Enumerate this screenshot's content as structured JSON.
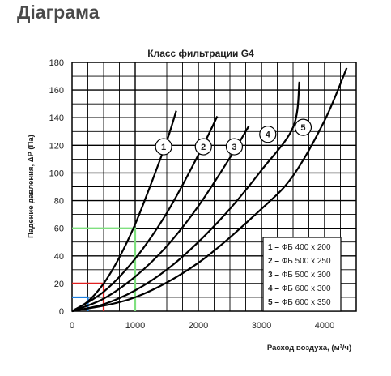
{
  "page": {
    "title": "Діаграма"
  },
  "chart_data": {
    "type": "line",
    "title": "Класс фильтрации G4",
    "xlabel": "Расход воздуха, (м³/ч)",
    "ylabel": "Падение давления, ΔP (Па)",
    "xlim": [
      0,
      4500
    ],
    "ylim": [
      0,
      180
    ],
    "x_ticks": [
      0,
      1000,
      2000,
      3000,
      4000
    ],
    "y_ticks": [
      0,
      20,
      40,
      60,
      80,
      100,
      120,
      140,
      160,
      180
    ],
    "grid": true,
    "grid_x_step": 250,
    "grid_y_step": 10,
    "legend_position": "bottom-right",
    "legend": [
      {
        "marker": "1",
        "sep": "–",
        "label": "ФБ 400 x 200"
      },
      {
        "marker": "2",
        "sep": "–",
        "label": "ФБ 500 x 250"
      },
      {
        "marker": "3",
        "sep": "–",
        "label": "ФБ 500 x 300"
      },
      {
        "marker": "4",
        "sep": "–",
        "label": "ФБ 600 x 300"
      },
      {
        "marker": "5",
        "sep": "–",
        "label": "ФБ 600 x 350"
      }
    ],
    "series": [
      {
        "marker": "1",
        "x": [
          0,
          250,
          500,
          750,
          1000,
          1250,
          1500,
          1650
        ],
        "y": [
          0,
          7,
          20,
          39,
          63,
          92,
          123,
          145
        ],
        "label_at": [
          1450,
          119
        ]
      },
      {
        "marker": "2",
        "x": [
          0,
          500,
          1000,
          1500,
          2000,
          2300
        ],
        "y": [
          0,
          14,
          38,
          71,
          113,
          141
        ],
        "label_at": [
          2080,
          119
        ]
      },
      {
        "marker": "3",
        "x": [
          0,
          500,
          1000,
          1500,
          2000,
          2500,
          2800
        ],
        "y": [
          0,
          9,
          25,
          47,
          76,
          111,
          134
        ],
        "label_at": [
          2570,
          119
        ]
      },
      {
        "marker": "4",
        "x": [
          0,
          500,
          1000,
          1500,
          2000,
          2500,
          3000,
          3500,
          3600
        ],
        "y": [
          0,
          5,
          15,
          30,
          50,
          74,
          102,
          133,
          166
        ],
        "label_at": [
          3100,
          128
        ]
      },
      {
        "marker": "5",
        "x": [
          0,
          1000,
          2000,
          3000,
          3500,
          4000,
          4350
        ],
        "y": [
          0,
          10,
          35,
          74,
          98,
          138,
          176
        ],
        "label_at": [
          3660,
          133
        ]
      }
    ],
    "guides": [
      {
        "color": "#7fe07f",
        "y": 60,
        "x": 1000
      },
      {
        "color": "#e02020",
        "y": 20,
        "x": 500
      },
      {
        "color": "#1c7fe0",
        "y": 10,
        "x": 250
      }
    ]
  }
}
